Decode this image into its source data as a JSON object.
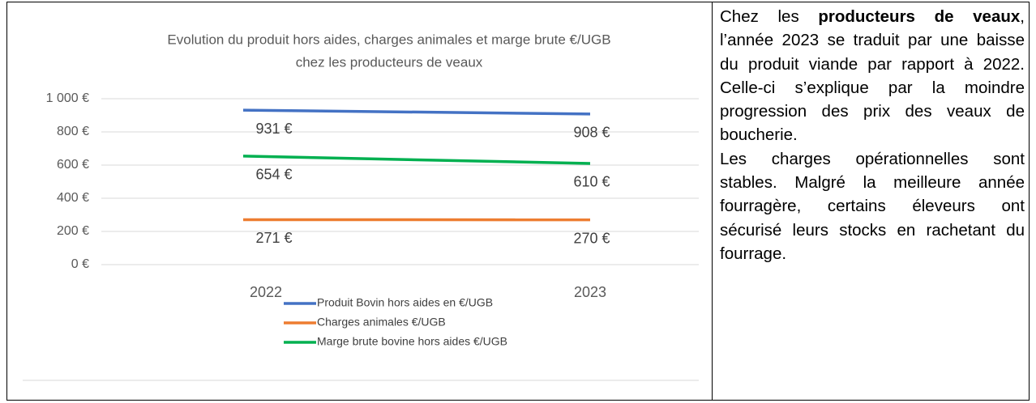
{
  "chart_data": {
    "type": "line",
    "title": [
      "Evolution du produit hors aides, charges animales et marge brute €/UGB",
      "chez les producteurs de veaux"
    ],
    "categories": [
      "2022",
      "2023"
    ],
    "series": [
      {
        "name": "Produit Bovin hors aides en €/UGB",
        "color": "#4472c4",
        "values": [
          931,
          908
        ],
        "value_labels": [
          "931 €",
          "908 €"
        ]
      },
      {
        "name": "Charges animales €/UGB",
        "color": "#ed7d31",
        "values": [
          271,
          270
        ],
        "value_labels": [
          "271 €",
          "270 €"
        ]
      },
      {
        "name": "Marge brute bovine hors aides €/UGB",
        "color": "#00b050",
        "values": [
          654,
          610
        ],
        "value_labels": [
          "654 €",
          "610 €"
        ]
      }
    ],
    "ylim": [
      0,
      1000
    ],
    "yticks": [
      {
        "value": 0,
        "label": "0 €"
      },
      {
        "value": 200,
        "label": "200 €"
      },
      {
        "value": 400,
        "label": "400 €"
      },
      {
        "value": 600,
        "label": "600 €"
      },
      {
        "value": 800,
        "label": "800 €"
      },
      {
        "value": 1000,
        "label": "1 000 €"
      }
    ],
    "grid": true,
    "legend": "bottom"
  },
  "text": {
    "paragraphs": [
      [
        "Chez les ",
        "producteurs de veaux",
        ", l’année 2023 se traduit par une baisse du produit viande par rapport à 2022. Celle-ci s’explique par la moindre progression des prix des veaux de boucherie."
      ],
      [
        "Les charges opérationnelles sont stables. Malgré la meilleure année fourragère, certains éleveurs ont sécurisé leurs stocks en rachetant du fourrage."
      ]
    ]
  }
}
